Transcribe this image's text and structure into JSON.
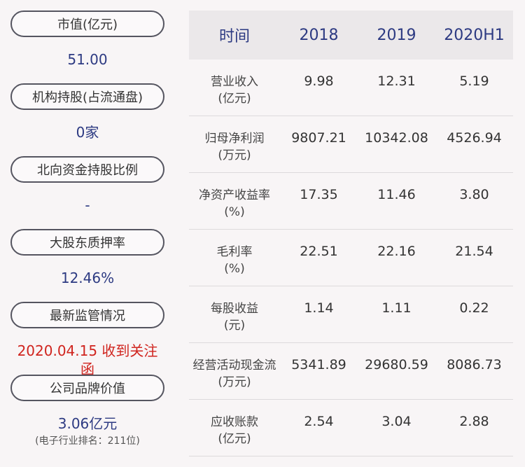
{
  "metrics": [
    {
      "label": "市值(亿元)",
      "value": "51.00"
    },
    {
      "label": "机构持股(占流通盘)",
      "value": "0家"
    },
    {
      "label": "北向资金持股比例",
      "value": "-"
    },
    {
      "label": "大股东质押率",
      "value": "12.46%"
    },
    {
      "label": "最新监管情况",
      "value": "2020.04.15 收到关注函"
    },
    {
      "label": "公司品牌价值",
      "value": "3.06亿元",
      "note": "(电子行业排名：211位)"
    }
  ],
  "table": {
    "headers": [
      "时间",
      "2018",
      "2019",
      "2020H1"
    ],
    "rows": [
      {
        "label1": "营业收入",
        "label2": "(亿元)",
        "values": [
          "9.98",
          "12.31",
          "5.19"
        ]
      },
      {
        "label1": "归母净利润",
        "label2": "(万元)",
        "values": [
          "9807.21",
          "10342.08",
          "4526.94"
        ]
      },
      {
        "label1": "净资产收益率",
        "label2": "(%)",
        "values": [
          "17.35",
          "11.46",
          "3.80"
        ]
      },
      {
        "label1": "毛利率",
        "label2": "(%)",
        "values": [
          "22.51",
          "22.16",
          "21.54"
        ]
      },
      {
        "label1": "每股收益",
        "label2": "(元)",
        "values": [
          "1.14",
          "1.11",
          "0.22"
        ]
      },
      {
        "label1": "经营活动现金流",
        "label2": "(万元)",
        "values": [
          "5341.89",
          "29680.59",
          "8086.73"
        ]
      },
      {
        "label1": "应收账款",
        "label2": "(亿元)",
        "values": [
          "2.54",
          "3.04",
          "2.88"
        ]
      }
    ]
  },
  "colors": {
    "value_text": "#2d3a82",
    "alert_text": "#d0241e",
    "header_bg": "#ebe8ea"
  }
}
